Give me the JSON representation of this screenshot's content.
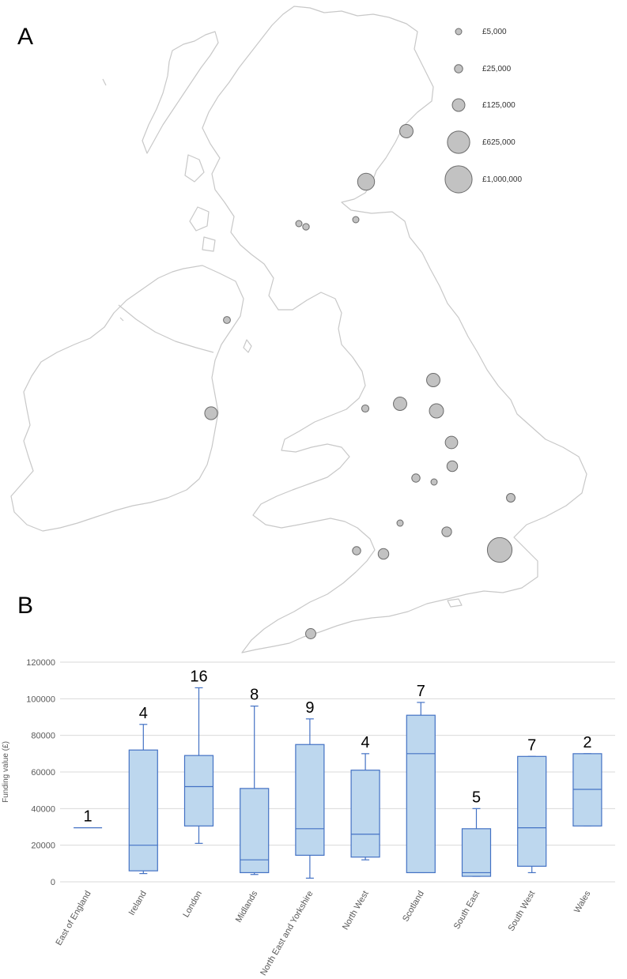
{
  "panel_a": {
    "label": "A",
    "legend": [
      {
        "value": 5000,
        "label": "£5,000"
      },
      {
        "value": 25000,
        "label": "£25,000"
      },
      {
        "value": 125000,
        "label": "£125,000"
      },
      {
        "value": 625000,
        "label": "£625,000"
      },
      {
        "value": 1000000,
        "label": "£1,000,000"
      }
    ]
  },
  "panel_b": {
    "label": "B"
  },
  "chart_data": [
    {
      "type": "scatter",
      "title": "",
      "legend_title": "",
      "legend_position": "top-right",
      "points": [
        {
          "region": "Scotland",
          "value": 150000
        },
        {
          "region": "Scotland",
          "value": 300000
        },
        {
          "region": "Scotland",
          "value": 5000
        },
        {
          "region": "Scotland",
          "value": 7000
        },
        {
          "region": "Scotland",
          "value": 5000
        },
        {
          "region": "Ireland",
          "value": 10000
        },
        {
          "region": "Ireland",
          "value": 130000
        },
        {
          "region": "North East and Yorkshire",
          "value": 150000
        },
        {
          "region": "North West",
          "value": 12000
        },
        {
          "region": "North East and Yorkshire",
          "value": 150000
        },
        {
          "region": "Midlands",
          "value": 180000
        },
        {
          "region": "Midlands",
          "value": 120000
        },
        {
          "region": "Midlands",
          "value": 70000
        },
        {
          "region": "Midlands",
          "value": 25000
        },
        {
          "region": "Midlands",
          "value": 5000
        },
        {
          "region": "East of England",
          "value": 30000
        },
        {
          "region": "Wales",
          "value": 5000
        },
        {
          "region": "South East",
          "value": 50000
        },
        {
          "region": "South West",
          "value": 25000
        },
        {
          "region": "South West",
          "value": 70000
        },
        {
          "region": "London",
          "value": 800000
        },
        {
          "region": "South West",
          "value": 60000
        }
      ]
    },
    {
      "type": "box",
      "title": "",
      "xlabel": "",
      "ylabel": "Funding value (£)",
      "ylim": [
        0,
        120000
      ],
      "yticks": [
        0,
        20000,
        40000,
        60000,
        80000,
        100000,
        120000
      ],
      "grid": true,
      "categories": [
        "East of England",
        "Ireland",
        "London",
        "Midlands",
        "North East and Yorkshire",
        "North West",
        "Scotland",
        "South East",
        "South West",
        "Wales"
      ],
      "counts": [
        "1",
        "4",
        "16",
        "8",
        "9",
        "4",
        "7",
        "5",
        "7",
        "2"
      ],
      "boxes": [
        {
          "min": 29500,
          "q1": 29500,
          "median": 29500,
          "q3": 29500,
          "max": 29500
        },
        {
          "min": 4500,
          "q1": 6000,
          "median": 20000,
          "q3": 72000,
          "max": 86000
        },
        {
          "min": 21000,
          "q1": 30500,
          "median": 52000,
          "q3": 69000,
          "max": 106000
        },
        {
          "min": 4000,
          "q1": 5000,
          "median": 12000,
          "q3": 51000,
          "max": 96000
        },
        {
          "min": 2000,
          "q1": 14500,
          "median": 29000,
          "q3": 75000,
          "max": 89000
        },
        {
          "min": 12000,
          "q1": 13500,
          "median": 26000,
          "q3": 61000,
          "max": 70000
        },
        {
          "min": 5000,
          "q1": 5000,
          "median": 70000,
          "q3": 91000,
          "max": 98000
        },
        {
          "min": 3000,
          "q1": 3000,
          "median": 5000,
          "q3": 29000,
          "max": 40000
        },
        {
          "min": 5000,
          "q1": 8500,
          "median": 29500,
          "q3": 68500,
          "max": 68500
        },
        {
          "min": 30500,
          "q1": 30500,
          "median": 50500,
          "q3": 70000,
          "max": 70000
        }
      ]
    }
  ]
}
